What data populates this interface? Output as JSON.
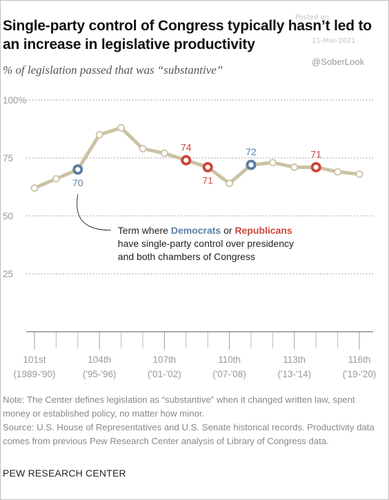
{
  "title": "Single-party control of Congress typically hasn’t led to an increase in legislative productivity",
  "subtitle": "% of legislation passed that was “substantive”",
  "watermark": {
    "line1": "Posted on",
    "line2": "11-Mar-2021",
    "handle": "@SoberLook"
  },
  "annotation": {
    "prefix": "Term where ",
    "dem": "Democrats",
    "middle": " or ",
    "rep": "Republicans",
    "line2": "have single-party control over presidency",
    "line3": "and both chambers of Congress"
  },
  "colors": {
    "line": "#cbc2a4",
    "dem": "#5a7fa6",
    "rep": "#cc463c",
    "grid": "#aaaaaa",
    "axis_text": "#999999"
  },
  "chart_data": {
    "type": "line",
    "y_unit": "%",
    "ylim": [
      0,
      100
    ],
    "yticks": [
      "100%",
      "75",
      "50",
      "25"
    ],
    "ytick_values": [
      100,
      75,
      50,
      25
    ],
    "x_tick_labels": [
      {
        "congress": "101st",
        "years": "(1989-'90)"
      },
      {
        "congress": "104th",
        "years": "('95-'96)"
      },
      {
        "congress": "107th",
        "years": "('01-'02)"
      },
      {
        "congress": "110th",
        "years": "('07-'08)"
      },
      {
        "congress": "113th",
        "years": "('13-'14)"
      },
      {
        "congress": "116th",
        "years": "('19-'20)"
      }
    ],
    "x_tick_congress": [
      101,
      104,
      107,
      110,
      113,
      116
    ],
    "x_range": [
      101,
      116
    ],
    "points": [
      {
        "congress": 101,
        "value": 62
      },
      {
        "congress": 102,
        "value": 66
      },
      {
        "congress": 103,
        "value": 70,
        "control": "dem",
        "label": "70",
        "label_pos": "below"
      },
      {
        "congress": 104,
        "value": 85
      },
      {
        "congress": 105,
        "value": 88
      },
      {
        "congress": 106,
        "value": 79
      },
      {
        "congress": 107,
        "value": 77
      },
      {
        "congress": 108,
        "value": 74,
        "control": "rep",
        "label": "74",
        "label_pos": "above"
      },
      {
        "congress": 109,
        "value": 71,
        "control": "rep",
        "label": "71",
        "label_pos": "below"
      },
      {
        "congress": 110,
        "value": 64
      },
      {
        "congress": 111,
        "value": 72,
        "control": "dem",
        "label": "72",
        "label_pos": "above"
      },
      {
        "congress": 112,
        "value": 73
      },
      {
        "congress": 113,
        "value": 71
      },
      {
        "congress": 114,
        "value": 71,
        "control": "rep",
        "label": "71",
        "label_pos": "above"
      },
      {
        "congress": 115,
        "value": 69
      },
      {
        "congress": 116,
        "value": 68
      }
    ]
  },
  "note": "Note: The Center defines legislation as “substantive” when it changed written law, spent money or established policy, no matter how minor.",
  "source": "Source: U.S. House of Representatives and U.S. Senate historical records. Productivity data comes from previous Pew Research Center analysis of Library of Congress data.",
  "org": "PEW RESEARCH CENTER"
}
